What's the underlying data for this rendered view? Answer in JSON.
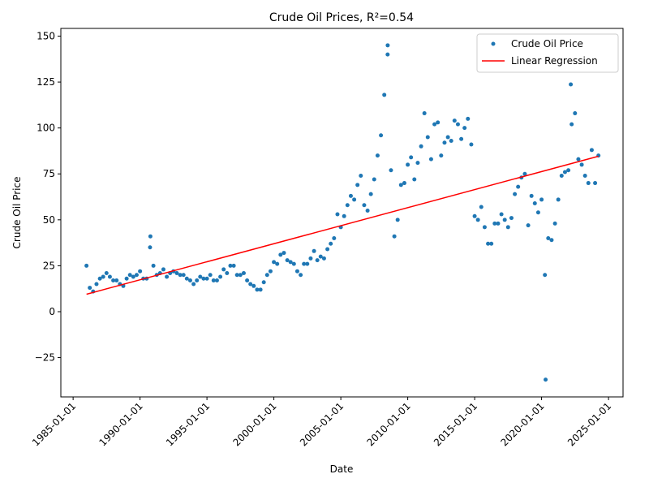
{
  "chart_data": {
    "type": "scatter",
    "title": "Crude Oil Prices, R²=0.54",
    "x_label": "Date",
    "y_label": "Crude Oil Price",
    "xlim": [
      "1984-02-01",
      "2026-02-01"
    ],
    "xticks": [
      "1985-01-01",
      "1990-01-01",
      "1995-01-01",
      "2000-01-01",
      "2005-01-01",
      "2010-01-01",
      "2015-01-01",
      "2020-01-01",
      "2025-01-01"
    ],
    "ylim": [
      -46.4,
      154.2
    ],
    "yticks": [
      {
        "value": -25,
        "label": "−25"
      },
      0,
      25,
      50,
      75,
      100,
      125,
      150
    ],
    "grid": false,
    "legend": "upper right",
    "series": [
      {
        "name": "Crude Oil Price",
        "color": "#1f77b4",
        "style": "points",
        "x": [
          "1986-01-01",
          "1986-04-01",
          "1986-07-01",
          "1986-10-01",
          "1987-01-01",
          "1987-04-01",
          "1987-07-01",
          "1987-10-01",
          "1988-01-01",
          "1988-04-01",
          "1988-07-01",
          "1988-10-01",
          "1989-01-01",
          "1989-04-01",
          "1989-07-01",
          "1989-10-01",
          "1990-01-01",
          "1990-04-01",
          "1990-07-01",
          "1990-10-01",
          "1990-10-11",
          "1991-01-01",
          "1991-04-01",
          "1991-07-01",
          "1991-10-01",
          "1992-01-01",
          "1992-04-01",
          "1992-07-01",
          "1992-10-01",
          "1993-01-01",
          "1993-04-01",
          "1993-07-01",
          "1993-10-01",
          "1994-01-01",
          "1994-04-01",
          "1994-07-01",
          "1994-10-01",
          "1995-01-01",
          "1995-04-01",
          "1995-07-01",
          "1995-10-01",
          "1996-01-01",
          "1996-04-01",
          "1996-07-01",
          "1996-10-01",
          "1997-01-01",
          "1997-04-01",
          "1997-07-01",
          "1997-10-01",
          "1998-01-01",
          "1998-04-01",
          "1998-07-01",
          "1998-10-01",
          "1999-01-01",
          "1999-04-01",
          "1999-07-01",
          "1999-10-01",
          "2000-01-01",
          "2000-04-01",
          "2000-07-01",
          "2000-10-01",
          "2001-01-01",
          "2001-04-01",
          "2001-07-01",
          "2001-10-01",
          "2002-01-01",
          "2002-04-01",
          "2002-07-01",
          "2002-10-01",
          "2003-01-01",
          "2003-04-01",
          "2003-07-01",
          "2003-10-01",
          "2004-01-01",
          "2004-04-01",
          "2004-07-01",
          "2004-10-01",
          "2005-01-01",
          "2005-04-01",
          "2005-07-01",
          "2005-10-01",
          "2006-01-01",
          "2006-04-01",
          "2006-07-01",
          "2006-10-01",
          "2007-01-01",
          "2007-04-01",
          "2007-07-01",
          "2007-10-01",
          "2008-01-01",
          "2008-04-01",
          "2008-07-01",
          "2008-07-03",
          "2008-10-01",
          "2009-01-01",
          "2009-04-01",
          "2009-07-01",
          "2009-10-01",
          "2010-01-01",
          "2010-04-01",
          "2010-07-01",
          "2010-10-01",
          "2011-01-01",
          "2011-04-01",
          "2011-07-01",
          "2011-10-01",
          "2012-01-01",
          "2012-04-01",
          "2012-07-01",
          "2012-10-01",
          "2013-01-01",
          "2013-04-01",
          "2013-07-01",
          "2013-10-01",
          "2014-01-01",
          "2014-04-01",
          "2014-07-01",
          "2014-10-01",
          "2015-01-01",
          "2015-04-01",
          "2015-07-01",
          "2015-10-01",
          "2016-01-01",
          "2016-04-01",
          "2016-07-01",
          "2016-10-01",
          "2017-01-01",
          "2017-04-01",
          "2017-07-01",
          "2017-10-01",
          "2018-01-01",
          "2018-04-01",
          "2018-07-01",
          "2018-10-01",
          "2019-01-01",
          "2019-04-01",
          "2019-07-01",
          "2019-10-01",
          "2020-01-01",
          "2020-04-01",
          "2020-04-20",
          "2020-07-01",
          "2020-10-01",
          "2021-01-01",
          "2021-04-01",
          "2021-07-01",
          "2021-10-01",
          "2022-01-01",
          "2022-03-08",
          "2022-04-01",
          "2022-07-01",
          "2022-10-01",
          "2023-01-01",
          "2023-04-01",
          "2023-07-01",
          "2023-10-01",
          "2024-01-01",
          "2024-04-01"
        ],
        "values": [
          25,
          13,
          11,
          15,
          18,
          19,
          21,
          19,
          17,
          17,
          15,
          14,
          18,
          20,
          19,
          20,
          22,
          18,
          18,
          35,
          41,
          25,
          20,
          21,
          23,
          19,
          21,
          22,
          21,
          20,
          20,
          18,
          17,
          15,
          17,
          19,
          18,
          18,
          20,
          17,
          17,
          19,
          23,
          21,
          25,
          25,
          20,
          20,
          21,
          17,
          15,
          14,
          12,
          12,
          16,
          20,
          22,
          27,
          26,
          31,
          32,
          28,
          27,
          26,
          22,
          20,
          26,
          26,
          29,
          33,
          28,
          30,
          29,
          34,
          37,
          40,
          53,
          46,
          52,
          58,
          63,
          61,
          69,
          74,
          58,
          55,
          64,
          72,
          85,
          96,
          118,
          140,
          145,
          77,
          41,
          50,
          69,
          70,
          80,
          84,
          72,
          81,
          90,
          108,
          95,
          83,
          102,
          103,
          85,
          92,
          95,
          93,
          104,
          102,
          94,
          100,
          105,
          91,
          52,
          50,
          57,
          46,
          37,
          37,
          48,
          48,
          53,
          50,
          46,
          51,
          64,
          68,
          73,
          75,
          47,
          63,
          59,
          54,
          61,
          20,
          -37,
          40,
          39,
          48,
          61,
          74,
          76,
          77,
          123.7,
          102,
          108,
          83,
          80,
          74,
          70,
          88,
          70,
          85
        ]
      },
      {
        "name": "Linear Regression",
        "color": "#ff0000",
        "style": "line",
        "x": [
          "1986-01-02",
          "2024-04-01"
        ],
        "values": [
          9.5,
          84.6
        ]
      }
    ]
  }
}
